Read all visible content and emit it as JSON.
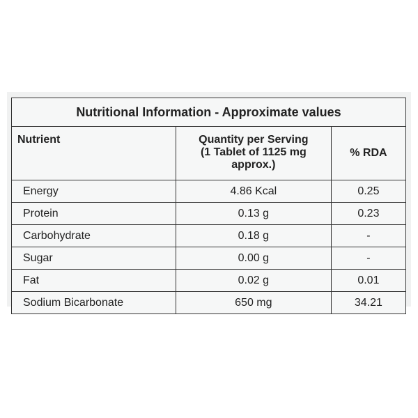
{
  "header": {
    "title": "Nutritional Information - Approximate values"
  },
  "table": {
    "header": [
      "Nutrient",
      [
        "Quantity per Serving",
        "(1 Tablet of 1125 mg approx.)"
      ],
      "% RDA"
    ],
    "rows": [
      [
        "Energy",
        "4.86 Kcal",
        "0.25"
      ],
      [
        "Protein",
        "0.13 g",
        "0.23"
      ],
      [
        "Carbohydrate",
        "0.18 g",
        "-"
      ],
      [
        "Sugar",
        "0.00 g",
        "-"
      ],
      [
        "Fat",
        "0.02 g",
        "0.01"
      ],
      [
        "Sodium Bicarbonate",
        "650 mg",
        "34.21"
      ]
    ]
  }
}
